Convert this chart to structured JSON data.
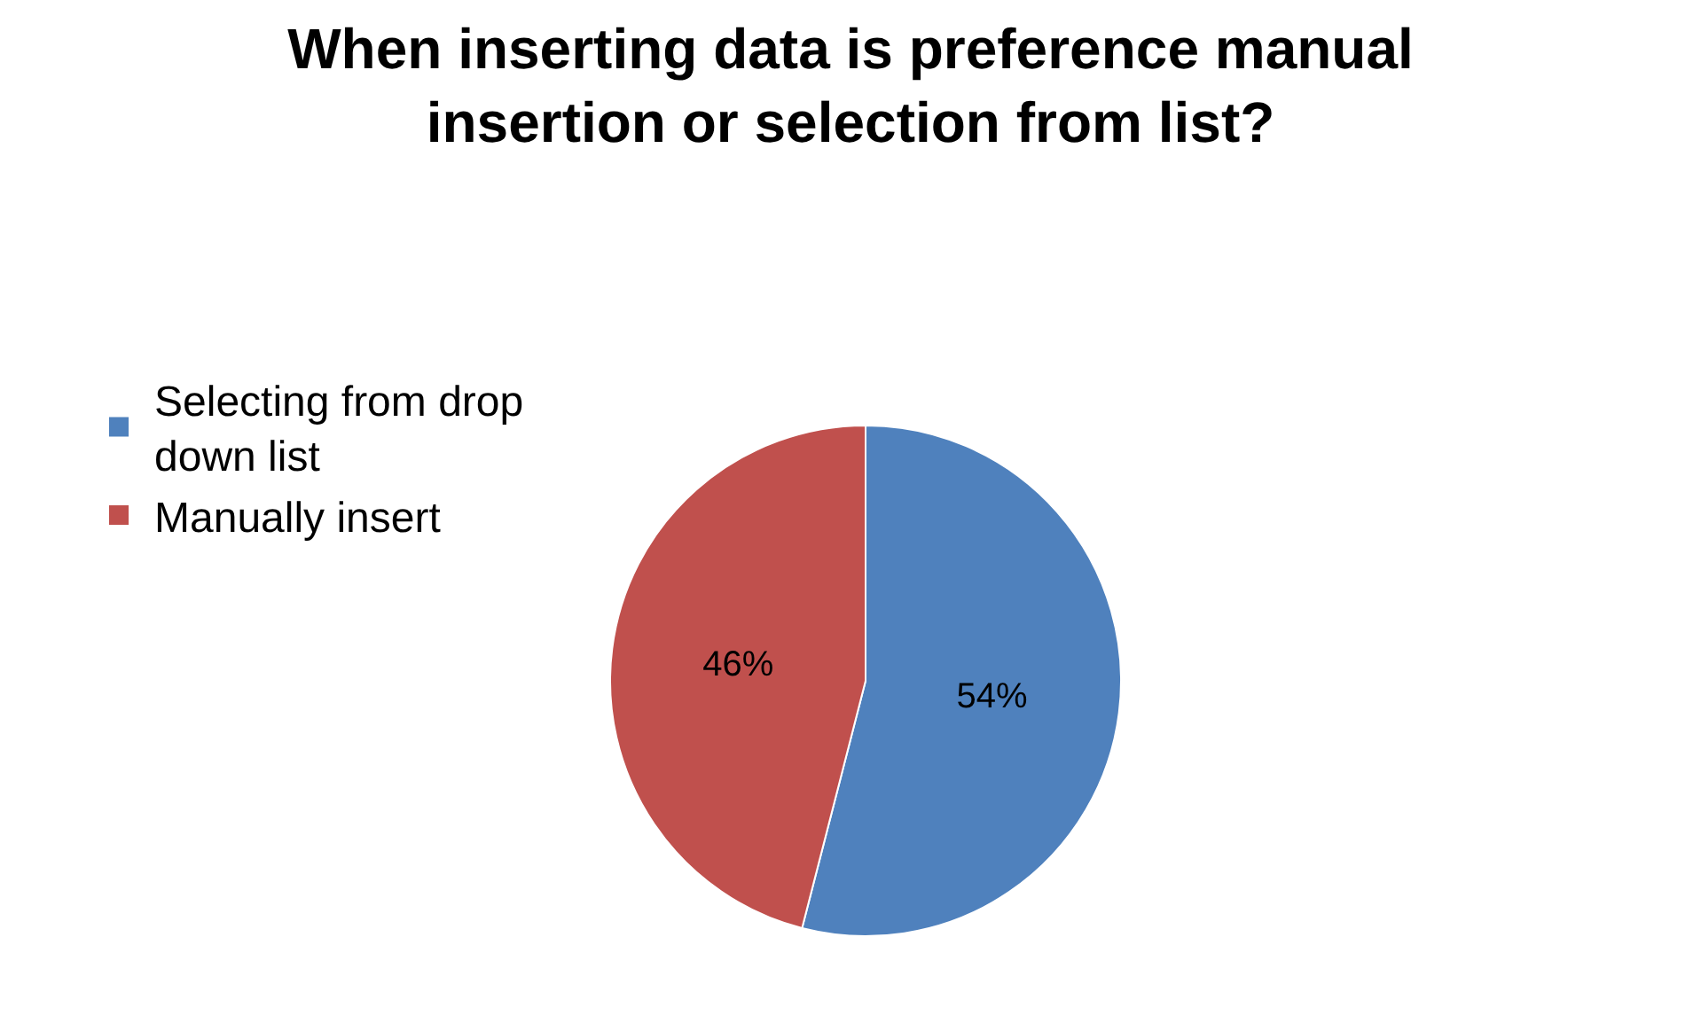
{
  "chart_data": {
    "type": "pie",
    "title": "When inserting data is preference manual insertion or selection from list?",
    "categories": [
      "Selecting from drop down list",
      "Manually insert"
    ],
    "values": [
      54,
      46
    ],
    "colors": [
      "#4f81bd",
      "#c0504d"
    ],
    "value_labels": [
      "54%",
      "46%"
    ],
    "legend": "left"
  }
}
